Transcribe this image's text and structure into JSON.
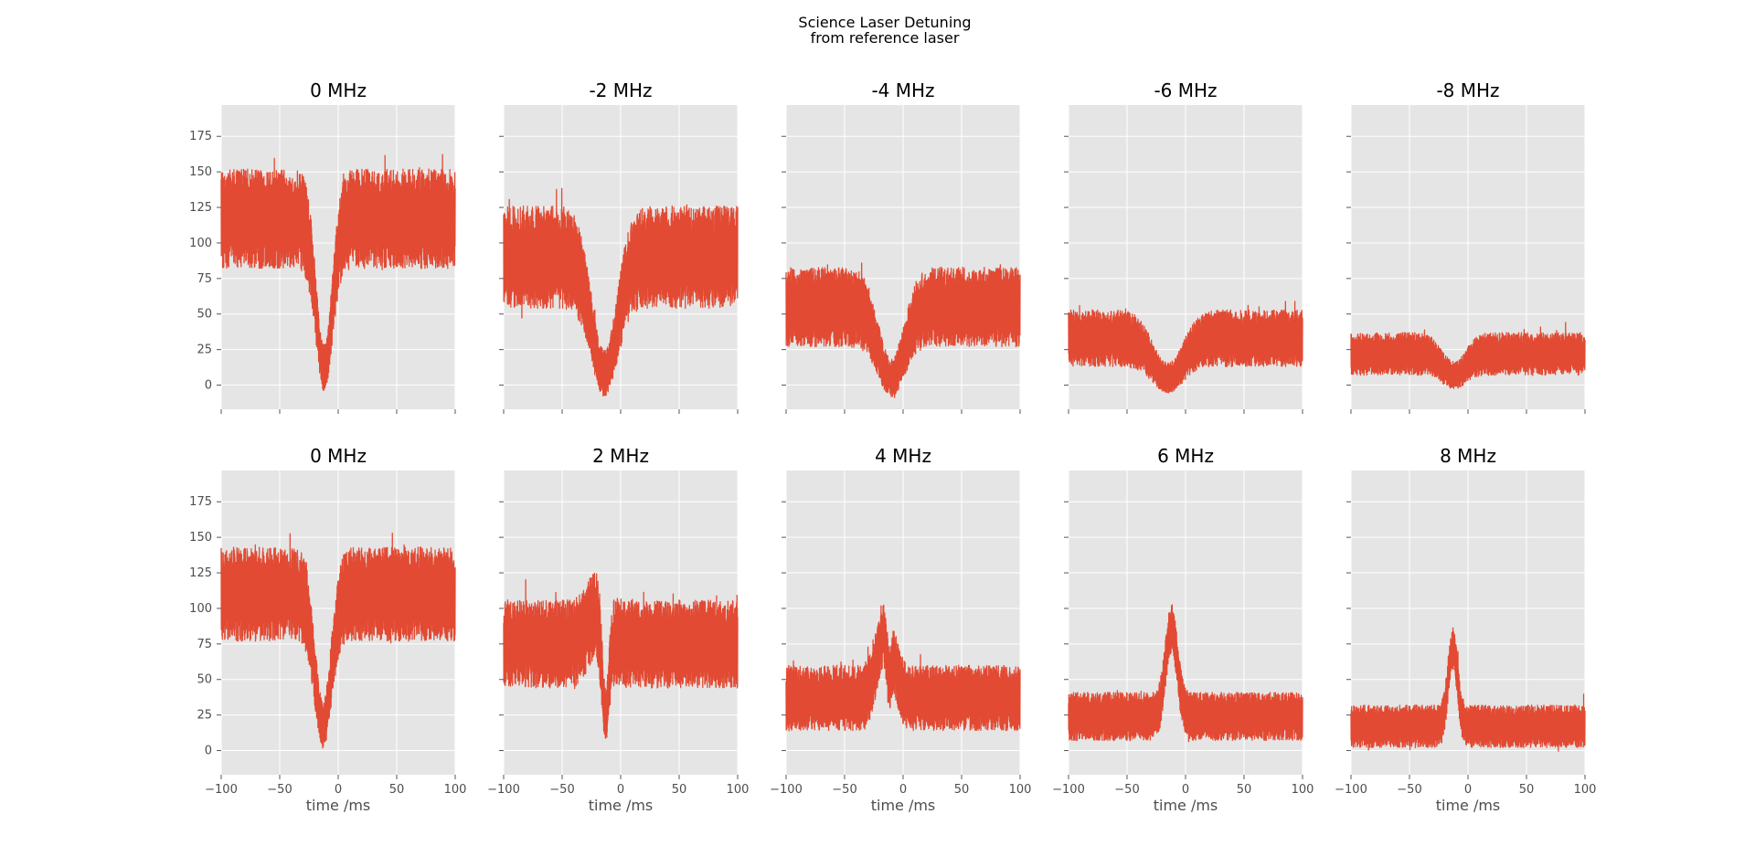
{
  "figure": {
    "suptitle_line1": "Science Laser Detuning",
    "suptitle_line2": "from reference laser",
    "background": "#ffffff",
    "panel_background": "#e5e5e5",
    "grid_color": "#ffffff",
    "series_color": "#e24a33"
  },
  "chart_data": [
    {
      "type": "line",
      "title": "0 MHz",
      "row": 0,
      "col": 0,
      "xlabel": "",
      "ylabel": "",
      "xlim": [
        -100,
        100
      ],
      "ylim": [
        -17,
        197
      ],
      "grid": true,
      "baseline": 117,
      "noise": 32,
      "dip": {
        "x": -12,
        "depth": 105,
        "width": 7
      },
      "peak": null
    },
    {
      "type": "line",
      "title": "-2 MHz",
      "row": 0,
      "col": 1,
      "xlabel": "",
      "ylabel": "",
      "xlim": [
        -100,
        100
      ],
      "ylim": [
        -17,
        197
      ],
      "grid": true,
      "baseline": 90,
      "noise": 33,
      "dip": {
        "x": -14,
        "depth": 82,
        "width": 11
      },
      "peak": null
    },
    {
      "type": "line",
      "title": "-4 MHz",
      "row": 0,
      "col": 2,
      "xlabel": "",
      "ylabel": "",
      "xlim": [
        -100,
        100
      ],
      "ylim": [
        -17,
        197
      ],
      "grid": true,
      "baseline": 55,
      "noise": 25,
      "dip": {
        "x": -10,
        "depth": 50,
        "width": 11
      },
      "peak": null
    },
    {
      "type": "line",
      "title": "-6 MHz",
      "row": 0,
      "col": 3,
      "xlabel": "",
      "ylabel": "",
      "xlim": [
        -100,
        100
      ],
      "ylim": [
        -17,
        197
      ],
      "grid": true,
      "baseline": 33,
      "noise": 17,
      "dip": {
        "x": -15,
        "depth": 28,
        "width": 13
      },
      "peak": null
    },
    {
      "type": "line",
      "title": "-8 MHz",
      "row": 0,
      "col": 4,
      "xlabel": "",
      "ylabel": "",
      "xlim": [
        -100,
        100
      ],
      "ylim": [
        -17,
        197
      ],
      "grid": true,
      "baseline": 22,
      "noise": 12,
      "dip": {
        "x": -12,
        "depth": 15,
        "width": 10
      },
      "peak": null
    },
    {
      "type": "line",
      "title": "0 MHz",
      "row": 1,
      "col": 0,
      "xlabel": "time /ms",
      "ylabel": "",
      "xlim": [
        -100,
        100
      ],
      "ylim": [
        -17,
        197
      ],
      "grid": true,
      "baseline": 110,
      "noise": 30,
      "dip": {
        "x": -13,
        "depth": 92,
        "width": 7
      },
      "peak": null
    },
    {
      "type": "line",
      "title": "2 MHz",
      "row": 1,
      "col": 1,
      "xlabel": "time /ms",
      "ylabel": "",
      "xlim": [
        -100,
        100
      ],
      "ylim": [
        -17,
        197
      ],
      "grid": true,
      "baseline": 75,
      "noise": 28,
      "dip": {
        "x": -13,
        "depth": 65,
        "width": 3
      },
      "peak": {
        "x": -20,
        "height": 22,
        "width": 8
      }
    },
    {
      "type": "line",
      "title": "4 MHz",
      "row": 1,
      "col": 2,
      "xlabel": "time /ms",
      "ylabel": "",
      "xlim": [
        -100,
        100
      ],
      "ylim": [
        -17,
        197
      ],
      "grid": true,
      "baseline": 37,
      "noise": 20,
      "dip": {
        "x": -12,
        "depth": 30,
        "width": 2
      },
      "peak": {
        "x": -15,
        "height": 48,
        "width": 7
      }
    },
    {
      "type": "line",
      "title": "6 MHz",
      "row": 1,
      "col": 3,
      "xlabel": "time /ms",
      "ylabel": "",
      "xlim": [
        -100,
        100
      ],
      "ylim": [
        -17,
        197
      ],
      "grid": true,
      "baseline": 24,
      "noise": 14,
      "dip": null,
      "peak": {
        "x": -12,
        "height": 62,
        "width": 5
      }
    },
    {
      "type": "line",
      "title": "8 MHz",
      "row": 1,
      "col": 4,
      "xlabel": "time /ms",
      "ylabel": "",
      "xlim": [
        -100,
        100
      ],
      "ylim": [
        -17,
        197
      ],
      "grid": true,
      "baseline": 17,
      "noise": 12,
      "dip": null,
      "peak": {
        "x": -13,
        "height": 55,
        "width": 4
      }
    }
  ],
  "axes": {
    "y_ticks": [
      0,
      25,
      50,
      75,
      100,
      125,
      150,
      175
    ],
    "x_ticks": [
      -100,
      -50,
      0,
      50,
      100
    ],
    "y_tick_labels": [
      "0",
      "25",
      "50",
      "75",
      "100",
      "125",
      "150",
      "175"
    ],
    "x_tick_labels": [
      "−100",
      "−50",
      "0",
      "50",
      "100"
    ]
  }
}
